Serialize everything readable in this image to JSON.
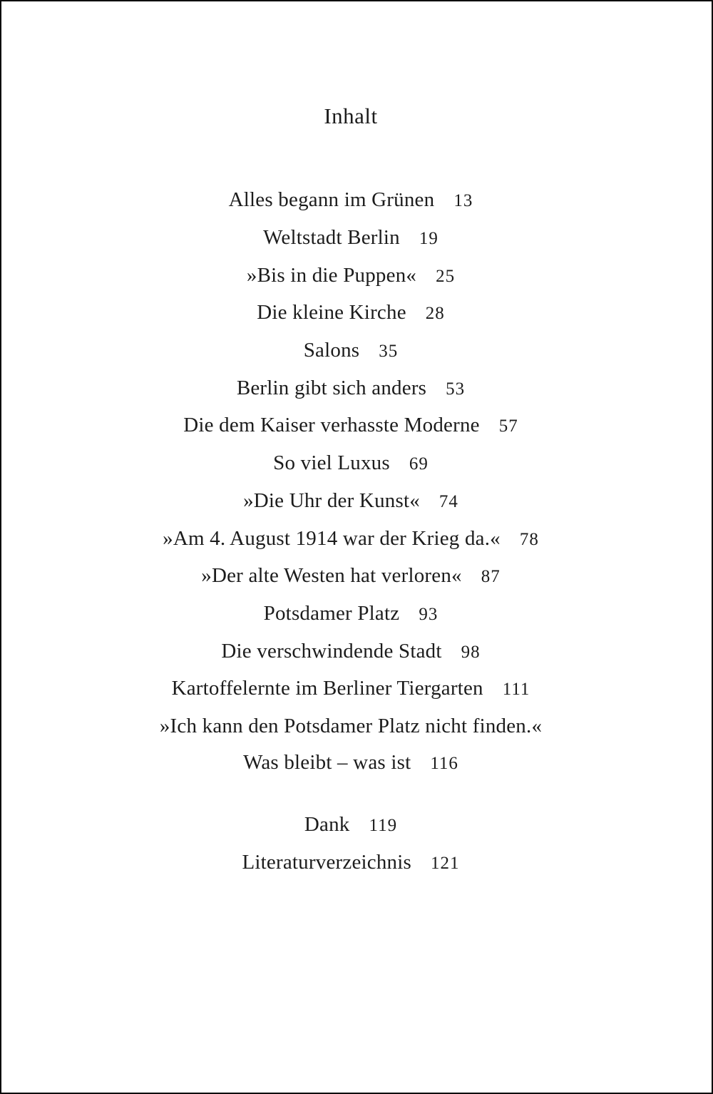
{
  "page": {
    "title": "Inhalt",
    "entries": [
      {
        "label": "Alles begann im Grünen",
        "page": "13"
      },
      {
        "label": "Weltstadt Berlin",
        "page": "19"
      },
      {
        "label": "»Bis in die Puppen«",
        "page": "25"
      },
      {
        "label": "Die kleine Kirche",
        "page": "28"
      },
      {
        "label": "Salons",
        "page": "35"
      },
      {
        "label": "Berlin gibt sich anders",
        "page": "53"
      },
      {
        "label": "Die dem Kaiser verhasste Moderne",
        "page": "57"
      },
      {
        "label": "So viel Luxus",
        "page": "69"
      },
      {
        "label": "»Die Uhr der Kunst«",
        "page": "74"
      },
      {
        "label": "»Am 4. August 1914 war der Krieg da.«",
        "page": "78"
      },
      {
        "label": "»Der alte Westen hat verloren«",
        "page": "87"
      },
      {
        "label": "Potsdamer Platz",
        "page": "93"
      },
      {
        "label": "Die verschwindende Stadt",
        "page": "98"
      },
      {
        "label": "Kartoffelernte im Berliner Tiergarten",
        "page": "111"
      },
      {
        "label": "»Ich kann den Potsdamer Platz nicht finden.«",
        "page": ""
      },
      {
        "label": "Was bleibt – was ist",
        "page": "116"
      }
    ],
    "back_matter": [
      {
        "label": "Dank",
        "page": "119"
      },
      {
        "label": "Literaturverzeichnis",
        "page": "121"
      }
    ],
    "colors": {
      "text": "#1c1c1c",
      "background": "#ffffff",
      "border": "#0a0a0a"
    }
  }
}
